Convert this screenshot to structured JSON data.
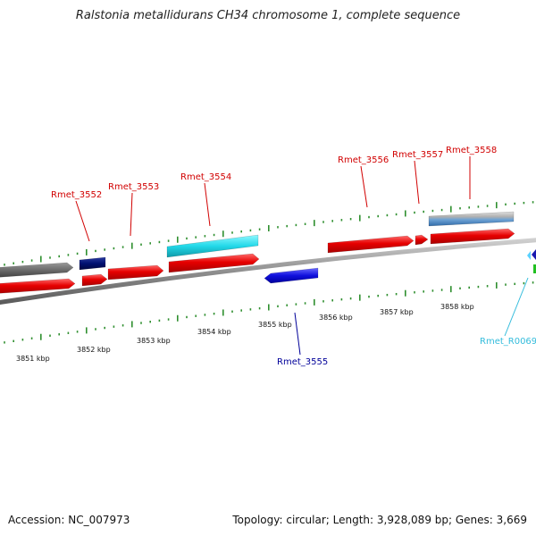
{
  "title": "Ralstonia metallidurans CH34 chromosome 1, complete sequence",
  "footer": {
    "accession": "Accession: NC_007973",
    "summary": "Topology: circular; Length: 3,928,089 bp; Genes: 3,669"
  },
  "colors": {
    "backbone": "#8f8f8f",
    "tick": "#2f8f2f",
    "label_red": "#d10000",
    "label_blue": "#000099",
    "label_cyan": "#33bcdc",
    "gene_red": "#e00000",
    "gene_gray": "#6f6f6f",
    "gene_navy": "#001070",
    "gene_cyan": "#22d8e8",
    "gene_blue": "#1010dd",
    "gene_steel": "#4c88c4",
    "gene_lightgray": "#a8a8a8",
    "rna_green": "#22c022"
  },
  "scale": {
    "unit": "kbp",
    "labels": [
      "3851 kbp",
      "3852 kbp",
      "3853 kbp",
      "3854 kbp",
      "3855 kbp",
      "3856 kbp",
      "3857 kbp",
      "3858 kbp"
    ]
  },
  "gene_labels": [
    {
      "text": "Rmet_3552",
      "color": "label_red"
    },
    {
      "text": "Rmet_3553",
      "color": "label_red"
    },
    {
      "text": "Rmet_3554",
      "color": "label_red"
    },
    {
      "text": "Rmet_3556",
      "color": "label_red"
    },
    {
      "text": "Rmet_3557",
      "color": "label_red"
    },
    {
      "text": "Rmet_3558",
      "color": "label_red"
    },
    {
      "text": "Rmet_3555",
      "color": "label_blue"
    },
    {
      "text": "Rmet_R0069",
      "color": "label_cyan"
    }
  ]
}
